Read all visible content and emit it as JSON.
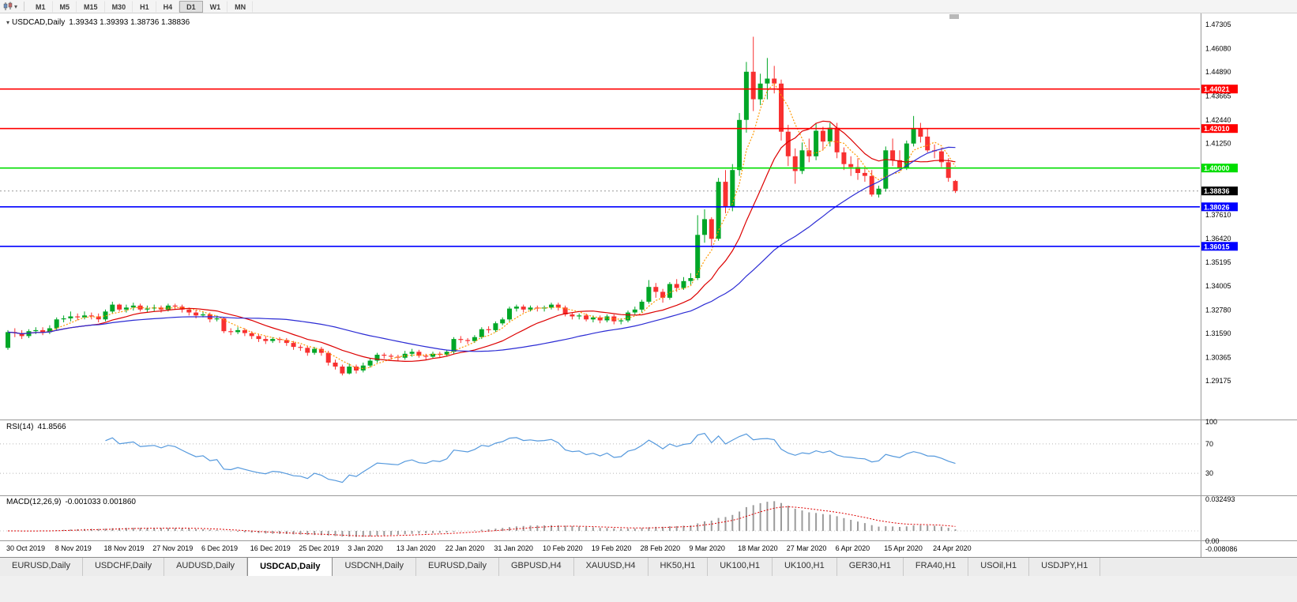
{
  "toolbar": {
    "timeframes": [
      "M1",
      "M5",
      "M15",
      "M30",
      "H1",
      "H4",
      "D1",
      "W1",
      "MN"
    ],
    "active_timeframe": "D1"
  },
  "main_chart": {
    "title": "USDCAD,Daily",
    "ohlc": "1.39343 1.39393 1.38736 1.38836"
  },
  "rsi_panel": {
    "label": "RSI(14)",
    "value": "41.8566"
  },
  "macd_panel": {
    "label": "MACD(12,26,9)",
    "values": "-0.001033 0.001860"
  },
  "chart_data": {
    "type": "candlestick",
    "symbol": "USDCAD",
    "period": "Daily",
    "colors": {
      "up": "#00a727",
      "down": "#f83030",
      "rsi": "#5599dd",
      "macd_hist": "#9b9b9b",
      "macd_signal": "#dd0000",
      "current_price_line": "#999999"
    },
    "price_axis": {
      "max": 1.47305,
      "min": 1.29175,
      "ticks": [
        "1.47305",
        "1.46080",
        "1.44890",
        "1.43665",
        "1.42440",
        "1.41250",
        "1.37610",
        "1.36420",
        "1.35195",
        "1.34005",
        "1.32780",
        "1.31590",
        "1.30365",
        "1.29175"
      ]
    },
    "hlines": [
      {
        "price": 1.44021,
        "label": "1.44021",
        "color": "#ff0000"
      },
      {
        "price": 1.4201,
        "label": "1.42010",
        "color": "#ff0000"
      },
      {
        "price": 1.4,
        "label": "1.40000",
        "color": "#00dd00"
      },
      {
        "price": 1.38026,
        "label": "1.38026",
        "color": "#0000ff"
      },
      {
        "price": 1.36015,
        "label": "1.36015",
        "color": "#0000ff"
      }
    ],
    "current_price": {
      "value": 1.38836,
      "label": "1.38836",
      "bg": "#000000"
    },
    "moving_averages": [
      {
        "period": 5,
        "color": "#ff9900",
        "style": "dotted"
      },
      {
        "period": 13,
        "color": "#dd0000",
        "style": "solid"
      },
      {
        "period": 34,
        "color": "#2b2bd4",
        "style": "solid"
      }
    ],
    "rsi": {
      "period": 14,
      "value": 41.8566,
      "levels": [
        70,
        30
      ],
      "axis_labels": [
        "100",
        "70",
        "30"
      ]
    },
    "macd": {
      "fast": 12,
      "slow": 26,
      "signal": 9,
      "macd_value": -0.001033,
      "signal_value": 0.00186,
      "axis_labels": [
        "0.032493",
        "0.00",
        "-0.008086"
      ]
    },
    "date_labels": [
      "30 Oct 2019",
      "8 Nov 2019",
      "18 Nov 2019",
      "27 Nov 2019",
      "6 Dec 2019",
      "16 Dec 2019",
      "25 Dec 2019",
      "3 Jan 2020",
      "13 Jan 2020",
      "22 Jan 2020",
      "31 Jan 2020",
      "10 Feb 2020",
      "19 Feb 2020",
      "28 Feb 2020",
      "9 Mar 2020",
      "18 Mar 2020",
      "27 Mar 2020",
      "6 Apr 2020",
      "15 Apr 2020",
      "24 Apr 2020"
    ],
    "label_step": 7,
    "candles": [
      [
        1.3085,
        1.3175,
        1.3075,
        1.3165
      ],
      [
        1.3165,
        1.3185,
        1.314,
        1.316
      ],
      [
        1.316,
        1.3175,
        1.313,
        1.3145
      ],
      [
        1.3145,
        1.318,
        1.3135,
        1.317
      ],
      [
        1.317,
        1.319,
        1.3155,
        1.3175
      ],
      [
        1.3175,
        1.319,
        1.315,
        1.3165
      ],
      [
        1.3165,
        1.32,
        1.3155,
        1.3185
      ],
      [
        1.3185,
        1.324,
        1.3175,
        1.323
      ],
      [
        1.323,
        1.325,
        1.3215,
        1.3235
      ],
      [
        1.3235,
        1.327,
        1.322,
        1.3245
      ],
      [
        1.3245,
        1.326,
        1.3225,
        1.324
      ],
      [
        1.324,
        1.327,
        1.323,
        1.325
      ],
      [
        1.325,
        1.3265,
        1.323,
        1.3245
      ],
      [
        1.3245,
        1.326,
        1.3215,
        1.323
      ],
      [
        1.323,
        1.328,
        1.322,
        1.327
      ],
      [
        1.327,
        1.332,
        1.326,
        1.3305
      ],
      [
        1.3305,
        1.331,
        1.327,
        1.328
      ],
      [
        1.328,
        1.3305,
        1.3265,
        1.329
      ],
      [
        1.329,
        1.3315,
        1.3275,
        1.33
      ],
      [
        1.33,
        1.331,
        1.327,
        1.328
      ],
      [
        1.328,
        1.33,
        1.3265,
        1.3285
      ],
      [
        1.3285,
        1.3305,
        1.327,
        1.329
      ],
      [
        1.329,
        1.33,
        1.3265,
        1.328
      ],
      [
        1.328,
        1.331,
        1.327,
        1.33
      ],
      [
        1.33,
        1.331,
        1.328,
        1.3295
      ],
      [
        1.3295,
        1.3305,
        1.3265,
        1.328
      ],
      [
        1.328,
        1.329,
        1.325,
        1.3265
      ],
      [
        1.3265,
        1.328,
        1.3235,
        1.325
      ],
      [
        1.325,
        1.327,
        1.324,
        1.3255
      ],
      [
        1.3255,
        1.3265,
        1.3215,
        1.323
      ],
      [
        1.323,
        1.325,
        1.322,
        1.3235
      ],
      [
        1.3235,
        1.324,
        1.316,
        1.317
      ],
      [
        1.317,
        1.3185,
        1.315,
        1.3165
      ],
      [
        1.3165,
        1.319,
        1.3155,
        1.3175
      ],
      [
        1.3175,
        1.3185,
        1.3145,
        1.316
      ],
      [
        1.316,
        1.317,
        1.313,
        1.3145
      ],
      [
        1.3145,
        1.3155,
        1.3115,
        1.313
      ],
      [
        1.313,
        1.3145,
        1.3105,
        1.312
      ],
      [
        1.312,
        1.314,
        1.311,
        1.313
      ],
      [
        1.313,
        1.314,
        1.311,
        1.3125
      ],
      [
        1.3125,
        1.3135,
        1.3095,
        1.311
      ],
      [
        1.311,
        1.312,
        1.3075,
        1.309
      ],
      [
        1.309,
        1.31,
        1.307,
        1.3085
      ],
      [
        1.3085,
        1.3095,
        1.3045,
        1.306
      ],
      [
        1.306,
        1.309,
        1.305,
        1.308
      ],
      [
        1.308,
        1.309,
        1.3045,
        1.306
      ],
      [
        1.306,
        1.307,
        1.2995,
        1.301
      ],
      [
        1.301,
        1.3025,
        1.2975,
        1.299
      ],
      [
        1.299,
        1.3,
        1.2945,
        1.2955
      ],
      [
        1.2955,
        1.3005,
        1.295,
        1.299
      ],
      [
        1.299,
        1.3,
        1.2955,
        1.297
      ],
      [
        1.297,
        1.301,
        1.296,
        1.2995
      ],
      [
        1.2995,
        1.303,
        1.2985,
        1.302
      ],
      [
        1.302,
        1.306,
        1.301,
        1.305
      ],
      [
        1.305,
        1.306,
        1.303,
        1.3045
      ],
      [
        1.3045,
        1.3055,
        1.3025,
        1.304
      ],
      [
        1.304,
        1.305,
        1.302,
        1.3035
      ],
      [
        1.3035,
        1.307,
        1.3025,
        1.3055
      ],
      [
        1.3055,
        1.308,
        1.304,
        1.3065
      ],
      [
        1.3065,
        1.3075,
        1.3035,
        1.3045
      ],
      [
        1.3045,
        1.3055,
        1.3025,
        1.304
      ],
      [
        1.304,
        1.3065,
        1.303,
        1.3055
      ],
      [
        1.3055,
        1.3065,
        1.3035,
        1.305
      ],
      [
        1.305,
        1.3075,
        1.304,
        1.3065
      ],
      [
        1.3065,
        1.314,
        1.3055,
        1.313
      ],
      [
        1.313,
        1.3145,
        1.311,
        1.3125
      ],
      [
        1.3125,
        1.3135,
        1.3105,
        1.312
      ],
      [
        1.312,
        1.315,
        1.311,
        1.314
      ],
      [
        1.314,
        1.319,
        1.313,
        1.318
      ],
      [
        1.318,
        1.3195,
        1.316,
        1.3175
      ],
      [
        1.3175,
        1.322,
        1.3165,
        1.321
      ],
      [
        1.321,
        1.324,
        1.32,
        1.323
      ],
      [
        1.323,
        1.3295,
        1.322,
        1.3285
      ],
      [
        1.3285,
        1.3305,
        1.327,
        1.3295
      ],
      [
        1.3295,
        1.3305,
        1.3265,
        1.328
      ],
      [
        1.328,
        1.33,
        1.327,
        1.329
      ],
      [
        1.329,
        1.33,
        1.327,
        1.3285
      ],
      [
        1.3285,
        1.33,
        1.327,
        1.329
      ],
      [
        1.329,
        1.3315,
        1.328,
        1.3305
      ],
      [
        1.3305,
        1.3315,
        1.3275,
        1.329
      ],
      [
        1.329,
        1.33,
        1.3245,
        1.3255
      ],
      [
        1.3255,
        1.3265,
        1.323,
        1.3245
      ],
      [
        1.3245,
        1.326,
        1.323,
        1.325
      ],
      [
        1.325,
        1.326,
        1.322,
        1.323
      ],
      [
        1.323,
        1.325,
        1.3215,
        1.324
      ],
      [
        1.324,
        1.325,
        1.321,
        1.3225
      ],
      [
        1.3225,
        1.3255,
        1.3215,
        1.3245
      ],
      [
        1.3245,
        1.3255,
        1.3205,
        1.322
      ],
      [
        1.322,
        1.3235,
        1.3205,
        1.3225
      ],
      [
        1.3225,
        1.3275,
        1.3215,
        1.3265
      ],
      [
        1.3265,
        1.3295,
        1.325,
        1.328
      ],
      [
        1.328,
        1.333,
        1.3265,
        1.332
      ],
      [
        1.332,
        1.343,
        1.331,
        1.3395
      ],
      [
        1.3395,
        1.3415,
        1.334,
        1.337
      ],
      [
        1.337,
        1.3385,
        1.3315,
        1.334
      ],
      [
        1.334,
        1.342,
        1.333,
        1.341
      ],
      [
        1.341,
        1.3435,
        1.337,
        1.339
      ],
      [
        1.339,
        1.3445,
        1.338,
        1.3425
      ],
      [
        1.3425,
        1.3465,
        1.3405,
        1.344
      ],
      [
        1.344,
        1.376,
        1.343,
        1.366
      ],
      [
        1.366,
        1.379,
        1.362,
        1.374
      ],
      [
        1.374,
        1.375,
        1.36,
        1.364
      ],
      [
        1.364,
        1.395,
        1.363,
        1.393
      ],
      [
        1.393,
        1.399,
        1.377,
        1.38
      ],
      [
        1.38,
        1.402,
        1.378,
        1.399
      ],
      [
        1.399,
        1.428,
        1.396,
        1.4245
      ],
      [
        1.4245,
        1.454,
        1.418,
        1.449
      ],
      [
        1.449,
        1.4668,
        1.429,
        1.435
      ],
      [
        1.435,
        1.448,
        1.432,
        1.443
      ],
      [
        1.443,
        1.456,
        1.435,
        1.4455
      ],
      [
        1.4455,
        1.452,
        1.438,
        1.443
      ],
      [
        1.443,
        1.445,
        1.414,
        1.4185
      ],
      [
        1.4185,
        1.422,
        1.401,
        1.406
      ],
      [
        1.406,
        1.41,
        1.392,
        1.3985
      ],
      [
        1.3985,
        1.413,
        1.397,
        1.409
      ],
      [
        1.409,
        1.415,
        1.403,
        1.406
      ],
      [
        1.406,
        1.423,
        1.404,
        1.419
      ],
      [
        1.419,
        1.421,
        1.409,
        1.4135
      ],
      [
        1.4135,
        1.423,
        1.411,
        1.4205
      ],
      [
        1.4205,
        1.423,
        1.405,
        1.408
      ],
      [
        1.408,
        1.4105,
        1.399,
        1.402
      ],
      [
        1.402,
        1.406,
        1.396,
        1.4005
      ],
      [
        1.4005,
        1.405,
        1.394,
        1.3975
      ],
      [
        1.3975,
        1.4,
        1.393,
        1.396
      ],
      [
        1.396,
        1.399,
        1.3855,
        1.3865
      ],
      [
        1.3865,
        1.391,
        1.385,
        1.3895
      ],
      [
        1.3895,
        1.411,
        1.388,
        1.409
      ],
      [
        1.409,
        1.415,
        1.401,
        1.404
      ],
      [
        1.404,
        1.409,
        1.3985,
        1.4
      ],
      [
        1.4,
        1.414,
        1.399,
        1.4125
      ],
      [
        1.4125,
        1.4265,
        1.411,
        1.42
      ],
      [
        1.42,
        1.423,
        1.413,
        1.416
      ],
      [
        1.416,
        1.42,
        1.408,
        1.409
      ],
      [
        1.409,
        1.412,
        1.405,
        1.4085
      ],
      [
        1.4085,
        1.4105,
        1.4005,
        1.403
      ],
      [
        1.403,
        1.405,
        1.393,
        1.395
      ],
      [
        1.39343,
        1.39393,
        1.38736,
        1.38836
      ]
    ]
  },
  "tabs": {
    "items": [
      {
        "label": "EURUSD,Daily",
        "active": false
      },
      {
        "label": "USDCHF,Daily",
        "active": false
      },
      {
        "label": "AUDUSD,Daily",
        "active": false
      },
      {
        "label": "USDCAD,Daily",
        "active": true
      },
      {
        "label": "USDCNH,Daily",
        "active": false
      },
      {
        "label": "EURUSD,Daily",
        "active": false
      },
      {
        "label": "GBPUSD,H4",
        "active": false
      },
      {
        "label": "XAUUSD,H4",
        "active": false
      },
      {
        "label": "HK50,H1",
        "active": false
      },
      {
        "label": "UK100,H1",
        "active": false
      },
      {
        "label": "UK100,H1",
        "active": false
      },
      {
        "label": "GER30,H1",
        "active": false
      },
      {
        "label": "FRA40,H1",
        "active": false
      },
      {
        "label": "USOil,H1",
        "active": false
      },
      {
        "label": "USDJPY,H1",
        "active": false
      }
    ]
  }
}
